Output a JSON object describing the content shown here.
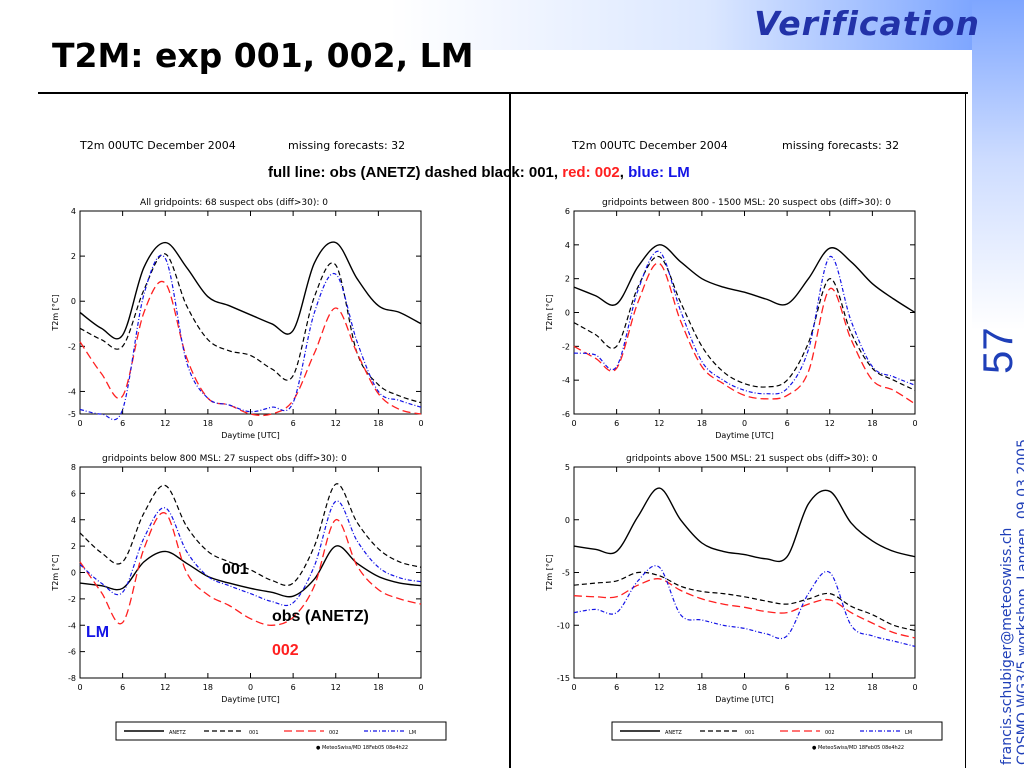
{
  "header": {
    "brand": "Verification",
    "title": "T2M: exp 001, 002, LM"
  },
  "sidebar": {
    "page_number": "57",
    "email": "francis.schubiger@meteoswiss.ch",
    "event": "COSMO WG3/5 workshop, Langen, 09.03.2005"
  },
  "legend_note": {
    "obs": "full line: obs (ANETZ)",
    "e001": "dashed black: 001,",
    "e002": "red: 002",
    "sep": ",",
    "lm": "blue: LM"
  },
  "annotations": {
    "e001": "001",
    "obs": "obs (ANETZ)",
    "lm": "LM",
    "e002": "002"
  },
  "header_left": {
    "left": "T2m 00UTC   December 2004",
    "right": "missing forecasts: 32"
  },
  "header_right": {
    "left": "T2m 00UTC   December 2004",
    "right": "missing forecasts: 32"
  },
  "bottom_legend": {
    "labels": [
      "ANETZ",
      "001",
      "002",
      "LM"
    ],
    "footer": "MeteoSwiss/MD 18Feb05 08e4h22"
  },
  "colors": {
    "obs": "#000000",
    "e001": "#000000",
    "e002": "#ff2020",
    "lm": "#1414e6",
    "accent": "#1f3fb8"
  },
  "chart_data": [
    {
      "type": "line",
      "title": "All gridpoints: 68    suspect obs (diff>30): 0",
      "xlabel": "Daytime [UTC]",
      "ylabel": "T2m [°C]",
      "x": [
        0,
        3,
        6,
        9,
        12,
        15,
        18,
        21,
        24,
        27,
        30,
        33,
        36,
        39,
        42,
        45,
        48
      ],
      "xtick_labels": [
        "0",
        "6",
        "12",
        "18",
        "0",
        "6",
        "12",
        "18",
        "0"
      ],
      "xtick_values": [
        0,
        6,
        12,
        18,
        24,
        30,
        36,
        42,
        48
      ],
      "ylim": [
        -5,
        4
      ],
      "yticks": [
        -5,
        -4,
        -2,
        0,
        2,
        4
      ],
      "series": [
        {
          "key": "obs",
          "values": [
            -0.5,
            -1.2,
            -1.5,
            1.5,
            2.6,
            1.5,
            0.2,
            -0.2,
            -0.6,
            -1.0,
            -1.3,
            1.7,
            2.6,
            1.0,
            -0.2,
            -0.5,
            -1.0
          ]
        },
        {
          "key": "e001",
          "values": [
            -1.2,
            -1.7,
            -2.0,
            0.5,
            2.1,
            -0.2,
            -1.7,
            -2.2,
            -2.4,
            -3.0,
            -3.3,
            0.2,
            1.6,
            -2.3,
            -3.7,
            -4.2,
            -4.5
          ]
        },
        {
          "key": "e002",
          "values": [
            -1.8,
            -3.2,
            -4.2,
            -0.5,
            0.8,
            -2.5,
            -4.3,
            -4.6,
            -5.0,
            -5.0,
            -4.4,
            -2.3,
            -0.3,
            -2.3,
            -4.1,
            -4.8,
            -5.0
          ]
        },
        {
          "key": "lm",
          "values": [
            -4.8,
            -5.0,
            -4.8,
            0.3,
            1.9,
            -2.7,
            -4.3,
            -4.6,
            -4.9,
            -4.7,
            -4.5,
            -0.5,
            1.2,
            -1.8,
            -4.0,
            -4.4,
            -4.7
          ]
        }
      ]
    },
    {
      "type": "line",
      "title": "gridpoints between 800 - 1500 MSL: 20    suspect obs (diff>30): 0",
      "xlabel": "Daytime [UTC]",
      "ylabel": "T2m [°C]",
      "x": [
        0,
        3,
        6,
        9,
        12,
        15,
        18,
        21,
        24,
        27,
        30,
        33,
        36,
        39,
        42,
        45,
        48
      ],
      "xtick_labels": [
        "0",
        "6",
        "12",
        "18",
        "0",
        "6",
        "12",
        "18",
        "0"
      ],
      "xtick_values": [
        0,
        6,
        12,
        18,
        24,
        30,
        36,
        42,
        48
      ],
      "ylim": [
        -6,
        6
      ],
      "yticks": [
        -6,
        -4,
        -2,
        0,
        2,
        4,
        6
      ],
      "series": [
        {
          "key": "obs",
          "values": [
            1.5,
            1.0,
            0.5,
            2.7,
            4.0,
            3.0,
            2.0,
            1.5,
            1.2,
            0.8,
            0.5,
            2.0,
            3.8,
            3.0,
            1.7,
            0.8,
            0.0
          ]
        },
        {
          "key": "e001",
          "values": [
            -0.6,
            -1.3,
            -2.0,
            1.5,
            3.3,
            0.6,
            -2.0,
            -3.5,
            -4.2,
            -4.4,
            -4.0,
            -1.8,
            2.0,
            -1.2,
            -3.3,
            -4.0,
            -4.6
          ]
        },
        {
          "key": "e002",
          "values": [
            -2.0,
            -2.7,
            -3.3,
            0.6,
            2.9,
            -0.5,
            -3.2,
            -4.2,
            -4.9,
            -5.1,
            -4.9,
            -3.5,
            1.4,
            -1.6,
            -4.0,
            -4.6,
            -5.4
          ]
        },
        {
          "key": "lm",
          "values": [
            -2.4,
            -2.5,
            -3.2,
            1.3,
            3.6,
            0.1,
            -2.9,
            -4.0,
            -4.6,
            -4.8,
            -4.5,
            -2.2,
            3.3,
            -0.5,
            -3.2,
            -3.8,
            -4.3
          ]
        }
      ]
    },
    {
      "type": "line",
      "title": "gridpoints below 800 MSL: 27    suspect obs (diff>30): 0",
      "xlabel": "Daytime [UTC]",
      "ylabel": "T2m [°C]",
      "x": [
        0,
        3,
        6,
        9,
        12,
        15,
        18,
        21,
        24,
        27,
        30,
        33,
        36,
        39,
        42,
        45,
        48
      ],
      "xtick_labels": [
        "0",
        "6",
        "12",
        "18",
        "0",
        "6",
        "12",
        "18",
        "0"
      ],
      "xtick_values": [
        0,
        6,
        12,
        18,
        24,
        30,
        36,
        42,
        48
      ],
      "ylim": [
        -8,
        8
      ],
      "yticks": [
        -8,
        -6,
        -4,
        -2,
        0,
        2,
        4,
        6,
        8
      ],
      "series": [
        {
          "key": "obs",
          "values": [
            -0.8,
            -1.0,
            -1.2,
            0.8,
            1.6,
            0.7,
            -0.3,
            -0.8,
            -1.2,
            -1.5,
            -1.8,
            -0.5,
            2.0,
            0.7,
            -0.3,
            -0.8,
            -1.0
          ]
        },
        {
          "key": "e001",
          "values": [
            3.0,
            1.5,
            0.8,
            4.5,
            6.6,
            3.5,
            1.6,
            0.8,
            0.2,
            -0.6,
            -0.8,
            2.0,
            6.7,
            3.8,
            1.8,
            0.8,
            0.4
          ]
        },
        {
          "key": "e002",
          "values": [
            0.8,
            -1.5,
            -3.8,
            1.8,
            4.5,
            0.0,
            -1.7,
            -2.5,
            -3.5,
            -4.0,
            -3.4,
            -1.0,
            4.0,
            0.5,
            -1.3,
            -2.0,
            -2.4
          ]
        },
        {
          "key": "lm",
          "values": [
            0.6,
            -0.8,
            -1.5,
            2.6,
            4.9,
            1.6,
            -0.3,
            -1.0,
            -1.6,
            -2.2,
            -2.3,
            0.5,
            5.4,
            2.4,
            0.4,
            -0.4,
            -0.7
          ]
        }
      ]
    },
    {
      "type": "line",
      "title": "gridpoints above 1500 MSL: 21    suspect obs (diff>30): 0",
      "xlabel": "Daytime [UTC]",
      "ylabel": "T2m [°C]",
      "x": [
        0,
        3,
        6,
        9,
        12,
        15,
        18,
        21,
        24,
        27,
        30,
        33,
        36,
        39,
        42,
        45,
        48
      ],
      "xtick_labels": [
        "0",
        "6",
        "12",
        "18",
        "0",
        "6",
        "12",
        "18",
        "0"
      ],
      "xtick_values": [
        0,
        6,
        12,
        18,
        24,
        30,
        36,
        42,
        48
      ],
      "ylim": [
        -15,
        5
      ],
      "yticks": [
        -15,
        -10,
        -5,
        0,
        5
      ],
      "series": [
        {
          "key": "obs",
          "values": [
            -2.5,
            -2.8,
            -3.0,
            0.3,
            3.0,
            0.0,
            -2.2,
            -3.0,
            -3.3,
            -3.7,
            -3.5,
            1.5,
            2.7,
            -0.3,
            -2.0,
            -3.0,
            -3.5
          ]
        },
        {
          "key": "e001",
          "values": [
            -6.2,
            -6.0,
            -5.8,
            -5.0,
            -5.3,
            -6.3,
            -6.8,
            -7.0,
            -7.3,
            -7.7,
            -8.0,
            -7.5,
            -7.0,
            -8.2,
            -9.0,
            -10.0,
            -10.5
          ]
        },
        {
          "key": "e002",
          "values": [
            -7.2,
            -7.3,
            -7.3,
            -6.2,
            -5.6,
            -6.7,
            -7.5,
            -8.0,
            -8.3,
            -8.7,
            -8.8,
            -8.0,
            -7.6,
            -8.8,
            -9.8,
            -10.7,
            -11.2
          ]
        },
        {
          "key": "lm",
          "values": [
            -8.8,
            -8.5,
            -8.8,
            -5.8,
            -4.5,
            -9.0,
            -9.5,
            -10.0,
            -10.3,
            -10.8,
            -11.0,
            -7.0,
            -5.0,
            -10.0,
            -11.0,
            -11.5,
            -12.0
          ]
        }
      ]
    }
  ]
}
